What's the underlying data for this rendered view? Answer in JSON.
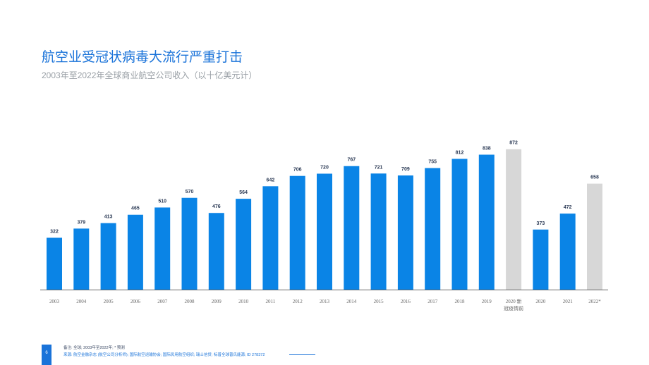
{
  "header": {
    "title": "航空业受冠状病毒大流行严重打击",
    "subtitle": "2003年至2022年全球商业航空公司收入（以十亿美元计）"
  },
  "chart_data": {
    "type": "bar",
    "categories": [
      "2003",
      "2004",
      "2005",
      "2006",
      "2007",
      "2008",
      "2009",
      "2010",
      "2011",
      "2012",
      "2013",
      "2014",
      "2015",
      "2016",
      "2017",
      "2018",
      "2019",
      "2020 新冠疫情前",
      "2020",
      "2021",
      "2022*"
    ],
    "category_lines": [
      [
        "2003"
      ],
      [
        "2004"
      ],
      [
        "2005"
      ],
      [
        "2006"
      ],
      [
        "2007"
      ],
      [
        "2008"
      ],
      [
        "2009"
      ],
      [
        "2010"
      ],
      [
        "2011"
      ],
      [
        "2012"
      ],
      [
        "2013"
      ],
      [
        "2014"
      ],
      [
        "2015"
      ],
      [
        "2016"
      ],
      [
        "2017"
      ],
      [
        "2018"
      ],
      [
        "2019"
      ],
      [
        "2020 新",
        "冠疫情前"
      ],
      [
        "2020"
      ],
      [
        "2021"
      ],
      [
        "2022*"
      ]
    ],
    "values": [
      322,
      379,
      413,
      465,
      510,
      570,
      476,
      564,
      642,
      706,
      720,
      767,
      721,
      709,
      755,
      812,
      838,
      872,
      373,
      472,
      658
    ],
    "highlight": [
      "actual",
      "actual",
      "actual",
      "actual",
      "actual",
      "actual",
      "actual",
      "actual",
      "actual",
      "actual",
      "actual",
      "actual",
      "actual",
      "actual",
      "actual",
      "actual",
      "actual",
      "pre-covid",
      "actual",
      "actual",
      "forecast"
    ],
    "ylim": [
      0,
      950
    ],
    "grid": false,
    "colors": {
      "actual": "#0a84e6",
      "pre-covid": "#d7d7d7",
      "forecast": "#d7d7d7",
      "axis": "#666666"
    }
  },
  "footer": {
    "page_number": "6",
    "note": "备注: 全球; 2003年至2022年; * 预测",
    "source": "来源: 航空金融杂志 (航空公司分析师); 国际航空运输协会; 国际民用航空组织; 瑞士信贷; 标普全球普氏能源; ID 278372"
  }
}
